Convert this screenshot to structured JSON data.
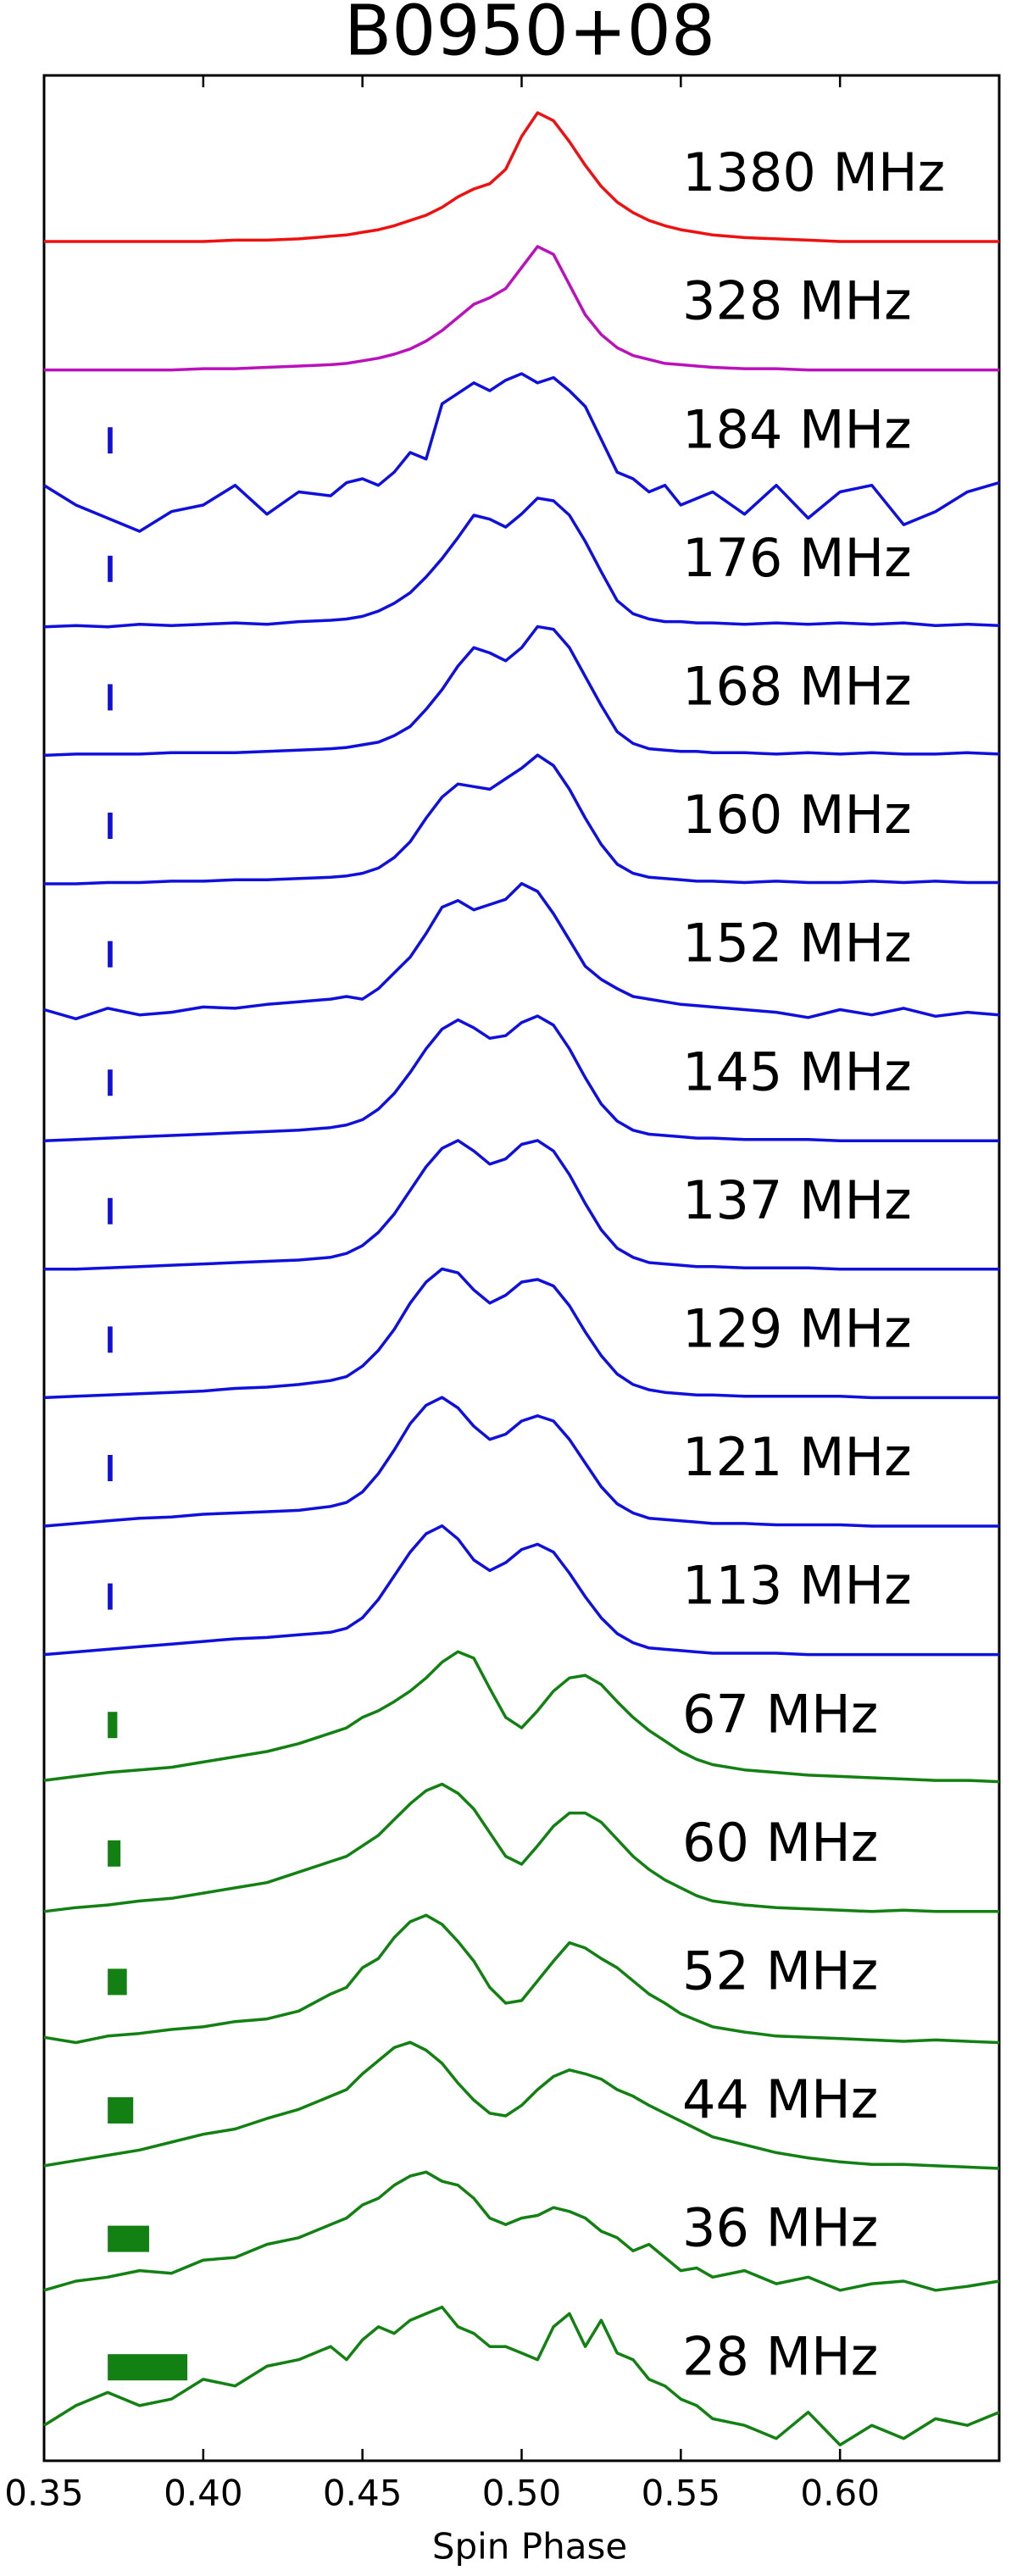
{
  "chart_data": {
    "type": "line",
    "title": "B0950+08",
    "x_label": "Spin Phase",
    "xlim": [
      0.35,
      0.65
    ],
    "xticks": [
      0.35,
      {
        "value": 0.4,
        "label": "0.40"
      },
      0.45,
      {
        "value": 0.5,
        "label": "0.50"
      },
      0.55,
      {
        "value": 0.6,
        "label": "0.60"
      }
    ],
    "marker_start": 0.37,
    "x": [
      0.35,
      0.36,
      0.37,
      0.38,
      0.39,
      0.4,
      0.41,
      0.42,
      0.43,
      0.44,
      0.445,
      0.45,
      0.455,
      0.46,
      0.465,
      0.47,
      0.475,
      0.48,
      0.485,
      0.49,
      0.495,
      0.5,
      0.505,
      0.51,
      0.515,
      0.52,
      0.525,
      0.53,
      0.535,
      0.54,
      0.545,
      0.55,
      0.555,
      0.56,
      0.57,
      0.58,
      0.59,
      0.6,
      0.61,
      0.62,
      0.63,
      0.64,
      0.65
    ],
    "series": [
      {
        "name": "1380 MHz",
        "color": "#ee1111",
        "values": [
          0,
          0,
          0,
          0,
          0,
          0,
          0.01,
          0.01,
          0.02,
          0.04,
          0.05,
          0.07,
          0.09,
          0.12,
          0.16,
          0.2,
          0.26,
          0.34,
          0.4,
          0.44,
          0.55,
          0.8,
          0.98,
          0.92,
          0.76,
          0.58,
          0.42,
          0.3,
          0.22,
          0.16,
          0.12,
          0.09,
          0.07,
          0.05,
          0.03,
          0.02,
          0.01,
          0,
          0,
          0,
          0,
          0,
          0
        ]
      },
      {
        "name": "328 MHz",
        "color": "#bb11bb",
        "values": [
          0,
          0,
          0,
          0,
          0,
          0.01,
          0.01,
          0.02,
          0.03,
          0.04,
          0.05,
          0.07,
          0.09,
          0.12,
          0.16,
          0.22,
          0.3,
          0.4,
          0.5,
          0.55,
          0.62,
          0.78,
          0.94,
          0.88,
          0.65,
          0.42,
          0.27,
          0.17,
          0.11,
          0.08,
          0.05,
          0.04,
          0.03,
          0.02,
          0.01,
          0.01,
          0,
          0,
          0,
          0,
          0,
          0,
          0
        ]
      },
      {
        "name": "184 MHz",
        "color": "#1010dd",
        "marker_width": 0.0015,
        "values": [
          0.1,
          -0.05,
          -0.15,
          -0.25,
          -0.1,
          -0.05,
          0.1,
          -0.12,
          0.05,
          0.02,
          0.12,
          0.15,
          0.1,
          0.2,
          0.35,
          0.3,
          0.72,
          0.8,
          0.88,
          0.82,
          0.9,
          0.95,
          0.88,
          0.92,
          0.82,
          0.7,
          0.45,
          0.2,
          0.15,
          0.05,
          0.1,
          -0.05,
          0.0,
          0.05,
          -0.12,
          0.1,
          -0.15,
          0.05,
          0.1,
          -0.2,
          -0.1,
          0.05,
          0.12
        ]
      },
      {
        "name": "176 MHz",
        "color": "#1010dd",
        "marker_width": 0.0015,
        "values": [
          0,
          0.01,
          0,
          0.02,
          0.01,
          0.02,
          0.03,
          0.02,
          0.04,
          0.05,
          0.06,
          0.08,
          0.12,
          0.18,
          0.26,
          0.38,
          0.52,
          0.68,
          0.85,
          0.82,
          0.76,
          0.86,
          0.98,
          0.96,
          0.85,
          0.65,
          0.42,
          0.2,
          0.1,
          0.06,
          0.04,
          0.04,
          0.03,
          0.03,
          0.02,
          0.03,
          0.02,
          0.03,
          0.02,
          0.03,
          0.01,
          0.02,
          0.01
        ]
      },
      {
        "name": "168 MHz",
        "color": "#1010dd",
        "marker_width": 0.0015,
        "values": [
          0,
          0.01,
          0.01,
          0.01,
          0.02,
          0.02,
          0.02,
          0.03,
          0.04,
          0.05,
          0.06,
          0.08,
          0.1,
          0.15,
          0.22,
          0.35,
          0.5,
          0.68,
          0.82,
          0.78,
          0.72,
          0.82,
          0.98,
          0.96,
          0.82,
          0.6,
          0.38,
          0.18,
          0.09,
          0.05,
          0.04,
          0.03,
          0.03,
          0.02,
          0.02,
          0.01,
          0.02,
          0.01,
          0.02,
          0.01,
          0.01,
          0.02,
          0.01
        ]
      },
      {
        "name": "160 MHz",
        "color": "#1010dd",
        "marker_width": 0.0015,
        "values": [
          0,
          0,
          0.01,
          0.01,
          0.02,
          0.02,
          0.03,
          0.03,
          0.04,
          0.05,
          0.06,
          0.08,
          0.12,
          0.2,
          0.32,
          0.5,
          0.66,
          0.76,
          0.74,
          0.72,
          0.8,
          0.88,
          0.98,
          0.9,
          0.72,
          0.5,
          0.3,
          0.15,
          0.08,
          0.05,
          0.04,
          0.03,
          0.02,
          0.02,
          0.01,
          0.02,
          0.01,
          0.01,
          0.02,
          0.01,
          0.02,
          0.01,
          0.01
        ]
      },
      {
        "name": "152 MHz",
        "color": "#1010dd",
        "marker_width": 0.0015,
        "values": [
          0.02,
          -0.05,
          0.03,
          -0.02,
          0.0,
          0.04,
          0.03,
          0.06,
          0.08,
          0.1,
          0.12,
          0.1,
          0.18,
          0.3,
          0.42,
          0.6,
          0.8,
          0.85,
          0.78,
          0.82,
          0.86,
          0.98,
          0.92,
          0.75,
          0.55,
          0.35,
          0.25,
          0.18,
          0.12,
          0.1,
          0.08,
          0.06,
          0.05,
          0.04,
          0.02,
          0.0,
          -0.04,
          0.02,
          -0.02,
          0.03,
          -0.03,
          0.0,
          -0.02
        ]
      },
      {
        "name": "145 MHz",
        "color": "#1010dd",
        "marker_width": 0.0015,
        "values": [
          0,
          0.01,
          0.02,
          0.03,
          0.04,
          0.05,
          0.06,
          0.07,
          0.08,
          0.1,
          0.12,
          0.16,
          0.24,
          0.36,
          0.52,
          0.7,
          0.85,
          0.92,
          0.86,
          0.78,
          0.8,
          0.9,
          0.95,
          0.88,
          0.7,
          0.48,
          0.28,
          0.15,
          0.08,
          0.05,
          0.04,
          0.03,
          0.02,
          0.02,
          0.01,
          0.01,
          0.01,
          0,
          0,
          0,
          0,
          0,
          0
        ]
      },
      {
        "name": "137 MHz",
        "color": "#1010dd",
        "marker_width": 0.0015,
        "values": [
          0,
          0,
          0.01,
          0.02,
          0.03,
          0.04,
          0.05,
          0.06,
          0.07,
          0.09,
          0.12,
          0.18,
          0.28,
          0.42,
          0.6,
          0.78,
          0.92,
          0.98,
          0.9,
          0.8,
          0.84,
          0.95,
          0.98,
          0.9,
          0.72,
          0.5,
          0.3,
          0.16,
          0.09,
          0.05,
          0.04,
          0.03,
          0.02,
          0.02,
          0.01,
          0.01,
          0.01,
          0,
          0,
          0,
          0,
          0,
          0
        ]
      },
      {
        "name": "129 MHz",
        "color": "#1010dd",
        "marker_width": 0.0015,
        "values": [
          0,
          0.01,
          0.02,
          0.03,
          0.04,
          0.05,
          0.07,
          0.08,
          0.1,
          0.13,
          0.16,
          0.24,
          0.36,
          0.52,
          0.72,
          0.88,
          0.98,
          0.95,
          0.82,
          0.72,
          0.78,
          0.88,
          0.9,
          0.85,
          0.7,
          0.5,
          0.32,
          0.18,
          0.1,
          0.06,
          0.04,
          0.03,
          0.02,
          0.02,
          0.01,
          0.01,
          0.01,
          0.01,
          0,
          0,
          0,
          0,
          0
        ]
      },
      {
        "name": "121 MHz",
        "color": "#1010dd",
        "marker_width": 0.0015,
        "values": [
          0,
          0.02,
          0.04,
          0.06,
          0.07,
          0.09,
          0.1,
          0.11,
          0.12,
          0.15,
          0.18,
          0.26,
          0.4,
          0.58,
          0.78,
          0.92,
          0.98,
          0.9,
          0.76,
          0.66,
          0.7,
          0.8,
          0.84,
          0.8,
          0.66,
          0.48,
          0.3,
          0.17,
          0.1,
          0.06,
          0.05,
          0.04,
          0.03,
          0.02,
          0.02,
          0.01,
          0.01,
          0.01,
          0,
          0,
          0,
          0,
          0
        ]
      },
      {
        "name": "113 MHz",
        "color": "#1010dd",
        "marker_width": 0.0015,
        "values": [
          0,
          0.02,
          0.04,
          0.06,
          0.08,
          0.1,
          0.12,
          0.13,
          0.15,
          0.17,
          0.2,
          0.28,
          0.42,
          0.6,
          0.78,
          0.92,
          0.98,
          0.88,
          0.72,
          0.64,
          0.7,
          0.8,
          0.84,
          0.78,
          0.62,
          0.44,
          0.28,
          0.16,
          0.09,
          0.05,
          0.04,
          0.03,
          0.02,
          0.01,
          0.01,
          0.01,
          0,
          0,
          0,
          0,
          0,
          0,
          0
        ]
      },
      {
        "name": "67 MHz",
        "color": "#128012",
        "marker_width": 0.003,
        "values": [
          0.02,
          0.05,
          0.08,
          0.1,
          0.12,
          0.16,
          0.2,
          0.24,
          0.3,
          0.38,
          0.42,
          0.5,
          0.55,
          0.62,
          0.7,
          0.8,
          0.92,
          1.0,
          0.95,
          0.72,
          0.5,
          0.42,
          0.55,
          0.7,
          0.8,
          0.82,
          0.75,
          0.62,
          0.5,
          0.4,
          0.32,
          0.24,
          0.18,
          0.14,
          0.1,
          0.08,
          0.06,
          0.05,
          0.04,
          0.03,
          0.02,
          0.02,
          0.01
        ]
      },
      {
        "name": "60 MHz",
        "color": "#128012",
        "marker_width": 0.004,
        "values": [
          0.0,
          0.03,
          0.05,
          0.08,
          0.1,
          0.14,
          0.18,
          0.22,
          0.3,
          0.38,
          0.42,
          0.5,
          0.58,
          0.7,
          0.82,
          0.92,
          0.97,
          0.9,
          0.78,
          0.6,
          0.42,
          0.36,
          0.5,
          0.65,
          0.75,
          0.75,
          0.68,
          0.55,
          0.42,
          0.32,
          0.24,
          0.18,
          0.12,
          0.08,
          0.05,
          0.03,
          0.02,
          0.01,
          0.0,
          0.01,
          0,
          0,
          0
        ]
      },
      {
        "name": "52 MHz",
        "color": "#128012",
        "marker_width": 0.006,
        "values": [
          0.02,
          -0.02,
          0.03,
          0.05,
          0.08,
          0.1,
          0.14,
          0.16,
          0.22,
          0.35,
          0.4,
          0.55,
          0.62,
          0.78,
          0.9,
          0.95,
          0.88,
          0.75,
          0.6,
          0.4,
          0.28,
          0.3,
          0.45,
          0.6,
          0.74,
          0.7,
          0.62,
          0.55,
          0.45,
          0.35,
          0.28,
          0.2,
          0.15,
          0.1,
          0.06,
          0.03,
          0.02,
          0.01,
          0.0,
          -0.01,
          0.0,
          -0.01,
          -0.02
        ]
      },
      {
        "name": "44 MHz",
        "color": "#128012",
        "marker_width": 0.008,
        "values": [
          0.02,
          0.06,
          0.1,
          0.14,
          0.2,
          0.26,
          0.3,
          0.38,
          0.45,
          0.55,
          0.6,
          0.72,
          0.82,
          0.92,
          0.96,
          0.9,
          0.8,
          0.65,
          0.52,
          0.42,
          0.4,
          0.48,
          0.6,
          0.7,
          0.75,
          0.72,
          0.68,
          0.6,
          0.55,
          0.48,
          0.42,
          0.36,
          0.3,
          0.24,
          0.18,
          0.12,
          0.08,
          0.05,
          0.03,
          0.03,
          0.02,
          0.01,
          0.0
        ]
      },
      {
        "name": "36 MHz",
        "color": "#128012",
        "marker_width": 0.013,
        "values": [
          0.05,
          0.12,
          0.15,
          0.2,
          0.18,
          0.28,
          0.3,
          0.4,
          0.45,
          0.55,
          0.6,
          0.7,
          0.75,
          0.85,
          0.92,
          0.95,
          0.88,
          0.85,
          0.75,
          0.6,
          0.55,
          0.6,
          0.62,
          0.68,
          0.65,
          0.6,
          0.5,
          0.45,
          0.35,
          0.4,
          0.3,
          0.2,
          0.22,
          0.15,
          0.2,
          0.1,
          0.15,
          0.05,
          0.1,
          0.12,
          0.05,
          0.08,
          0.12
        ]
      },
      {
        "name": "28 MHz",
        "color": "#128012",
        "marker_width": 0.025,
        "values": [
          0.0,
          0.15,
          0.25,
          0.15,
          0.2,
          0.35,
          0.3,
          0.45,
          0.5,
          0.6,
          0.5,
          0.65,
          0.75,
          0.7,
          0.8,
          0.85,
          0.9,
          0.75,
          0.7,
          0.6,
          0.6,
          0.55,
          0.5,
          0.75,
          0.85,
          0.6,
          0.8,
          0.55,
          0.5,
          0.35,
          0.3,
          0.2,
          0.15,
          0.05,
          0.0,
          -0.1,
          0.1,
          -0.15,
          0.0,
          -0.1,
          0.05,
          0.0,
          0.1
        ]
      }
    ]
  }
}
